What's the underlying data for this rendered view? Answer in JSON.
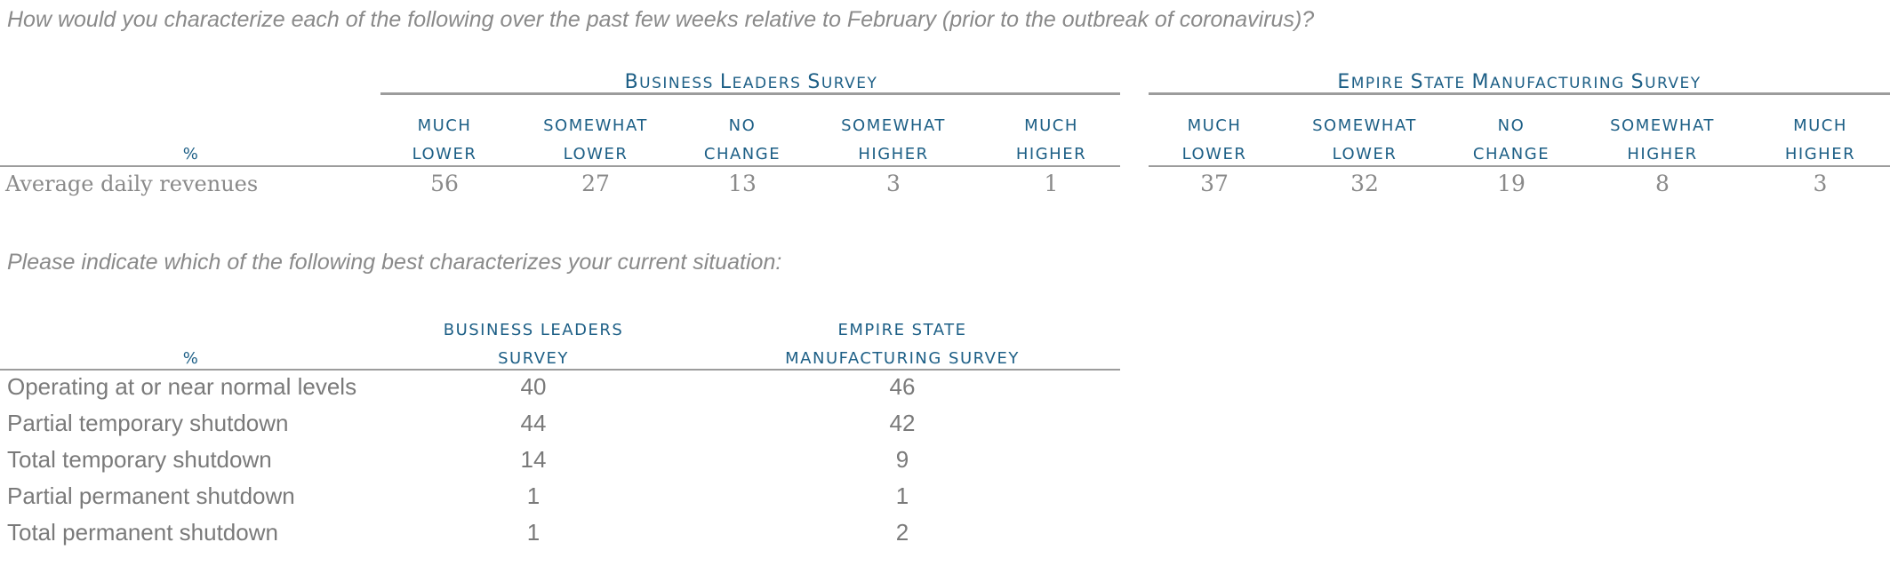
{
  "section1": {
    "question": "How would you characterize each of the following over the past few weeks relative to February (prior to the outbreak of coronavirus)?",
    "unit_label": "%",
    "groups": [
      {
        "title_first": "B",
        "title_rest": "USINESS ",
        "title_first2": "L",
        "title_rest2": "EADERS ",
        "title_first3": "S",
        "title_rest3": "URVEY"
      },
      {
        "title_first": "E",
        "title_rest": "MPIRE ",
        "title_first2": "S",
        "title_rest2": "TATE ",
        "title_first3": "M",
        "title_rest3": "ANUFACTURING ",
        "title_first4": "S",
        "title_rest4": "URVEY"
      }
    ],
    "columns": [
      {
        "line1": "MUCH",
        "line2": "LOWER"
      },
      {
        "line1": "SOMEWHAT",
        "line2": "LOWER"
      },
      {
        "line1": "NO",
        "line2": "CHANGE"
      },
      {
        "line1": "SOMEWHAT",
        "line2": "HIGHER"
      },
      {
        "line1": "MUCH",
        "line2": "HIGHER"
      }
    ],
    "row": {
      "label": "Average daily revenues",
      "business_leaders": [
        "56",
        "27",
        "13",
        "3",
        "1"
      ],
      "empire_state": [
        "37",
        "32",
        "19",
        "8",
        "3"
      ]
    }
  },
  "section2": {
    "question": "Please indicate which of the following best characterizes your current situation:",
    "unit_label": "%",
    "col1": {
      "line1": "BUSINESS LEADERS",
      "line2": "SURVEY"
    },
    "col2": {
      "line1": "EMPIRE STATE",
      "line2": "MANUFACTURING SURVEY"
    },
    "rows": [
      {
        "label": "Operating at or near normal levels",
        "bl": "40",
        "es": "46"
      },
      {
        "label": "Partial temporary shutdown",
        "bl": "44",
        "es": "42"
      },
      {
        "label": "Total temporary shutdown",
        "bl": "14",
        "es": "9"
      },
      {
        "label": "Partial permanent shutdown",
        "bl": "1",
        "es": "1"
      },
      {
        "label": "Total permanent shutdown",
        "bl": "1",
        "es": "2"
      }
    ]
  }
}
